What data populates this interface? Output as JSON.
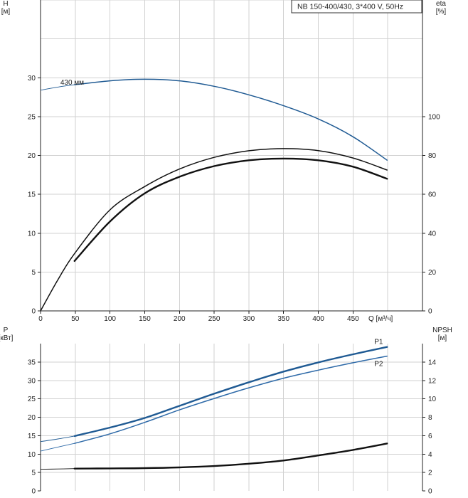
{
  "chart_data": [
    {
      "type": "line",
      "title": "NB 150-400/430, 3*400 V, 50Hz",
      "left_axis": {
        "label_line1": "H",
        "label_line2": "[м]",
        "ticks": [
          0,
          5,
          10,
          15,
          20,
          25,
          30
        ]
      },
      "right_axis": {
        "label_line1": "eta",
        "label_line2": "[%]",
        "ticks": [
          0,
          20,
          40,
          60,
          80,
          100
        ]
      },
      "x_axis": {
        "label": "Q [м³/ч]",
        "ticks": [
          0,
          50,
          100,
          150,
          200,
          250,
          300,
          350,
          400,
          450
        ]
      },
      "xlim": [
        0,
        550
      ],
      "ylim_left": [
        0,
        40
      ],
      "ylim_right": [
        0,
        160
      ],
      "grid": true,
      "series": [
        {
          "name": "430 мм",
          "axis": "left",
          "color": "#1f5a93",
          "thin_extension_until": 49,
          "x": [
            0,
            25,
            49,
            100,
            150,
            200,
            250,
            300,
            350,
            400,
            450,
            499
          ],
          "y": [
            28.4,
            28.8,
            29.1,
            29.6,
            29.8,
            29.6,
            28.9,
            27.8,
            26.4,
            24.7,
            22.4,
            19.4
          ]
        },
        {
          "name": "",
          "axis": "right",
          "color": "#111111",
          "x": [
            0,
            25,
            49,
            100,
            150,
            200,
            250,
            300,
            350,
            400,
            450,
            499
          ],
          "y": [
            0,
            16,
            29.5,
            52,
            64,
            73,
            79,
            82.4,
            83.5,
            82.5,
            78.7,
            72.5
          ]
        },
        {
          "name": "",
          "axis": "right",
          "color": "#111111",
          "bold": true,
          "x": [
            49,
            100,
            150,
            200,
            250,
            300,
            350,
            400,
            450,
            499
          ],
          "y": [
            25.7,
            46,
            60.5,
            69,
            74.5,
            77.5,
            78.4,
            77.5,
            74.2,
            68
          ]
        }
      ]
    },
    {
      "type": "line",
      "left_axis": {
        "label_line1": "P",
        "label_line2": "[кВт]",
        "ticks": [
          0,
          5,
          10,
          15,
          20,
          25,
          30,
          35
        ]
      },
      "right_axis": {
        "label_line1": "NPSH",
        "label_line2": "[м]",
        "ticks": [
          0,
          2,
          4,
          6,
          8,
          10,
          12,
          14
        ]
      },
      "xlim": [
        0,
        550
      ],
      "ylim_left": [
        0,
        40
      ],
      "ylim_right": [
        0,
        16
      ],
      "grid": true,
      "series": [
        {
          "name": "P1",
          "axis": "left",
          "color": "#1f5a93",
          "bold": true,
          "thin_extension_until": 49,
          "x": [
            0,
            25,
            49,
            100,
            150,
            200,
            250,
            300,
            350,
            400,
            450,
            499
          ],
          "y": [
            13.4,
            14.1,
            14.9,
            17.2,
            19.8,
            23.1,
            26.4,
            29.5,
            32.4,
            34.9,
            37.1,
            39.1
          ]
        },
        {
          "name": "P2",
          "axis": "left",
          "color": "#2e6aa8",
          "thin_extension_until": 49,
          "x": [
            0,
            25,
            49,
            100,
            150,
            200,
            250,
            300,
            350,
            400,
            450,
            499
          ],
          "y": [
            10.8,
            11.9,
            12.9,
            15.5,
            18.6,
            22.0,
            25.1,
            28.0,
            30.6,
            32.8,
            34.8,
            36.6
          ]
        },
        {
          "name": "",
          "axis": "right",
          "color": "#111111",
          "bold": true,
          "thin_extension_until": 49,
          "x": [
            0,
            25,
            49,
            100,
            150,
            200,
            250,
            300,
            350,
            400,
            450,
            499
          ],
          "y": [
            2.35,
            2.38,
            2.42,
            2.44,
            2.47,
            2.55,
            2.7,
            2.95,
            3.3,
            3.85,
            4.45,
            5.15
          ]
        }
      ]
    }
  ]
}
